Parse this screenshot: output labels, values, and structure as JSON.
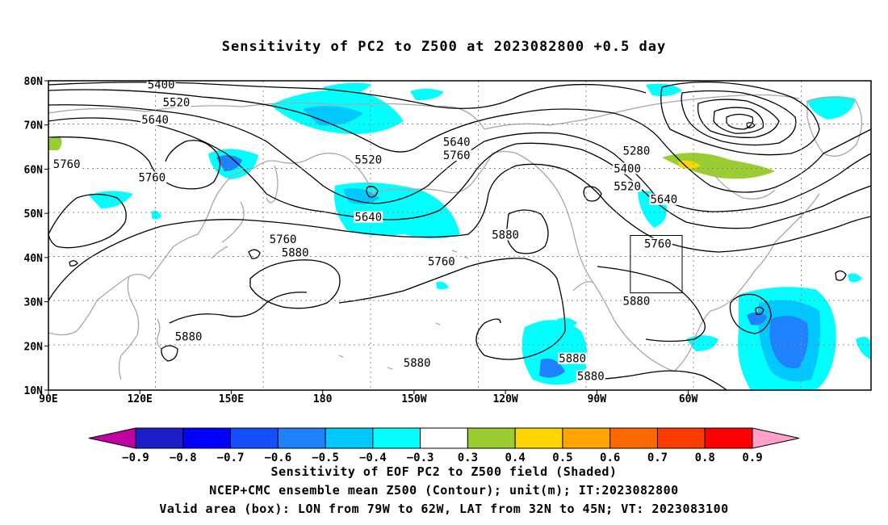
{
  "title": "Sensitivity of PC2 to Z500 at 2023082800 +0.5 day",
  "axes": {
    "lat_labels": [
      "80N",
      "70N",
      "60N",
      "50N",
      "40N",
      "30N",
      "20N",
      "10N"
    ],
    "lon_labels": [
      "90E",
      "120E",
      "150E",
      "180",
      "150W",
      "120W",
      "90W",
      "60W"
    ]
  },
  "contour_labels": [
    {
      "text": "5400",
      "lon": 127,
      "lat": 79
    },
    {
      "text": "5520",
      "lon": 132,
      "lat": 75
    },
    {
      "text": "5640",
      "lon": 125,
      "lat": 71
    },
    {
      "text": "5760",
      "lon": 96,
      "lat": 61
    },
    {
      "text": "5760",
      "lon": 124,
      "lat": 58
    },
    {
      "text": "5760",
      "lon": 167,
      "lat": 44
    },
    {
      "text": "5880",
      "lon": 171,
      "lat": 41
    },
    {
      "text": "5880",
      "lon": 136,
      "lat": 22
    },
    {
      "text": "5520",
      "lon": 195,
      "lat": 62
    },
    {
      "text": "5640",
      "lon": 195,
      "lat": 49
    },
    {
      "text": "5640",
      "lon": 224,
      "lat": 66
    },
    {
      "text": "5760",
      "lon": 224,
      "lat": 63
    },
    {
      "text": "5760",
      "lon": 219,
      "lat": 39
    },
    {
      "text": "5880",
      "lon": 240,
      "lat": 45
    },
    {
      "text": "5880",
      "lon": 211,
      "lat": 16
    },
    {
      "text": "5880",
      "lon": 262,
      "lat": 17
    },
    {
      "text": "5880",
      "lon": 268,
      "lat": 13
    },
    {
      "text": "5280",
      "lon": 283,
      "lat": 64
    },
    {
      "text": "5400",
      "lon": 280,
      "lat": 60
    },
    {
      "text": "5520",
      "lon": 280,
      "lat": 56
    },
    {
      "text": "5640",
      "lon": 292,
      "lat": 53
    },
    {
      "text": "5760",
      "lon": 290,
      "lat": 43
    },
    {
      "text": "5880",
      "lon": 283,
      "lat": 30
    }
  ],
  "colorbar": {
    "labels": [
      "−0.9",
      "−0.8",
      "−0.7",
      "−0.6",
      "−0.5",
      "−0.4",
      "−0.3",
      "0.3",
      "0.4",
      "0.5",
      "0.6",
      "0.7",
      "0.8",
      "0.9"
    ],
    "colors": [
      "#c000a0",
      "#1e1ec8",
      "#0000ff",
      "#1450ff",
      "#1e82ff",
      "#00c8ff",
      "#00ffff",
      "#ffffff",
      "#9acd32",
      "#ffd700",
      "#ffa500",
      "#ff6a00",
      "#ff3c00",
      "#ff0000",
      "#ffa0c8"
    ]
  },
  "valid_area": {
    "lon_min": -79,
    "lon_max": -62,
    "lat_min": 32,
    "lat_max": 45
  },
  "captions": {
    "line1": "Sensitivity of EOF PC2 to Z500 field (Shaded)",
    "line2": "NCEP+CMC ensemble mean Z500 (Contour); unit(m); IT:2023082800",
    "line3": "Valid area (box): LON from 79W to 62W, LAT from 32N to 45N; VT: 2023083100"
  }
}
